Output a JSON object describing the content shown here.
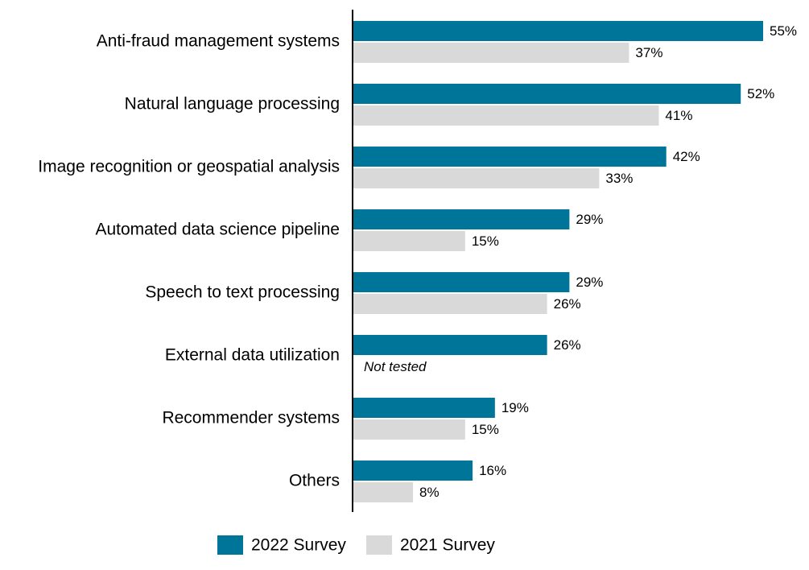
{
  "chart_data": {
    "type": "bar",
    "orientation": "horizontal",
    "categories": [
      "Anti-fraud management systems",
      "Natural language processing",
      "Image recognition or geospatial analysis",
      "Automated data science pipeline",
      "Speech to text processing",
      "External data utilization",
      "Recommender systems",
      "Others"
    ],
    "series": [
      {
        "name": "2022 Survey",
        "color": "#00759a",
        "values": [
          55,
          52,
          42,
          29,
          29,
          26,
          19,
          16
        ],
        "labels": [
          "55%",
          "52%",
          "42%",
          "29%",
          "29%",
          "26%",
          "19%",
          "16%"
        ]
      },
      {
        "name": "2021 Survey",
        "color": "#d9d9d9",
        "values": [
          37,
          41,
          33,
          15,
          26,
          null,
          15,
          8
        ],
        "labels": [
          "37%",
          "41%",
          "33%",
          "15%",
          "26%",
          "Not tested",
          "15%",
          "8%"
        ]
      }
    ],
    "xlim": [
      0,
      55
    ],
    "grid": false,
    "legend": "bottom",
    "title": "",
    "xlabel": "",
    "ylabel": ""
  }
}
